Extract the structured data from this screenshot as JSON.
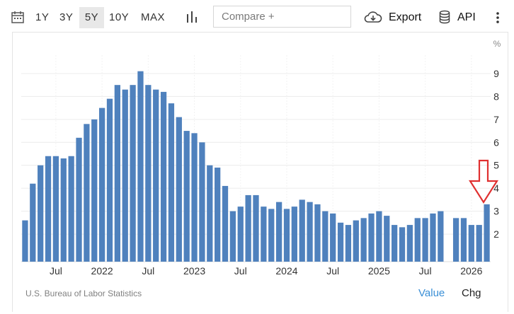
{
  "toolbar": {
    "ranges": [
      "1Y",
      "3Y",
      "5Y",
      "10Y",
      "MAX"
    ],
    "active_range": "5Y",
    "compare_placeholder": "Compare +",
    "export_label": "Export",
    "api_label": "API"
  },
  "icons": {
    "calendar": "calendar-icon",
    "chart_type": "bar-chart-icon",
    "export": "cloud-download-icon",
    "api": "database-icon",
    "more": "more-vertical-icon"
  },
  "colors": {
    "bar": "#4f81bd",
    "active_tab_text": "#3a8fd6",
    "annotation_arrow": "#e03030"
  },
  "footer": {
    "source": "U.S. Bureau of Labor Statistics",
    "value_label": "Value",
    "chg_label": "Chg"
  },
  "chart_data": {
    "type": "bar",
    "unit": "%",
    "ylim": [
      0.8,
      9.8
    ],
    "yticks": [
      2,
      3,
      4,
      5,
      6,
      7,
      8,
      9
    ],
    "grid": true,
    "y_axis_side": "right",
    "x_tick_labels": [
      "Jul",
      "2022",
      "Jul",
      "2023",
      "Jul",
      "2024",
      "Jul",
      "2025",
      "Jul",
      "2026"
    ],
    "values": [
      2.6,
      4.2,
      5.0,
      5.4,
      5.4,
      5.3,
      5.4,
      6.2,
      6.8,
      7.0,
      7.5,
      7.9,
      8.5,
      8.3,
      8.5,
      9.1,
      8.5,
      8.3,
      8.2,
      7.7,
      7.1,
      6.5,
      6.4,
      6.0,
      5.0,
      4.9,
      4.1,
      3.0,
      3.2,
      3.7,
      3.7,
      3.2,
      3.1,
      3.4,
      3.1,
      3.2,
      3.5,
      3.4,
      3.3,
      3.0,
      2.9,
      2.5,
      2.4,
      2.6,
      2.7,
      2.9,
      3.0,
      2.8,
      2.4,
      2.3,
      2.4,
      2.7,
      2.7,
      2.9,
      3.0,
      null,
      2.7,
      2.7,
      2.4,
      2.4,
      3.3
    ],
    "annotation": "down-arrow pointing at latest bar"
  }
}
